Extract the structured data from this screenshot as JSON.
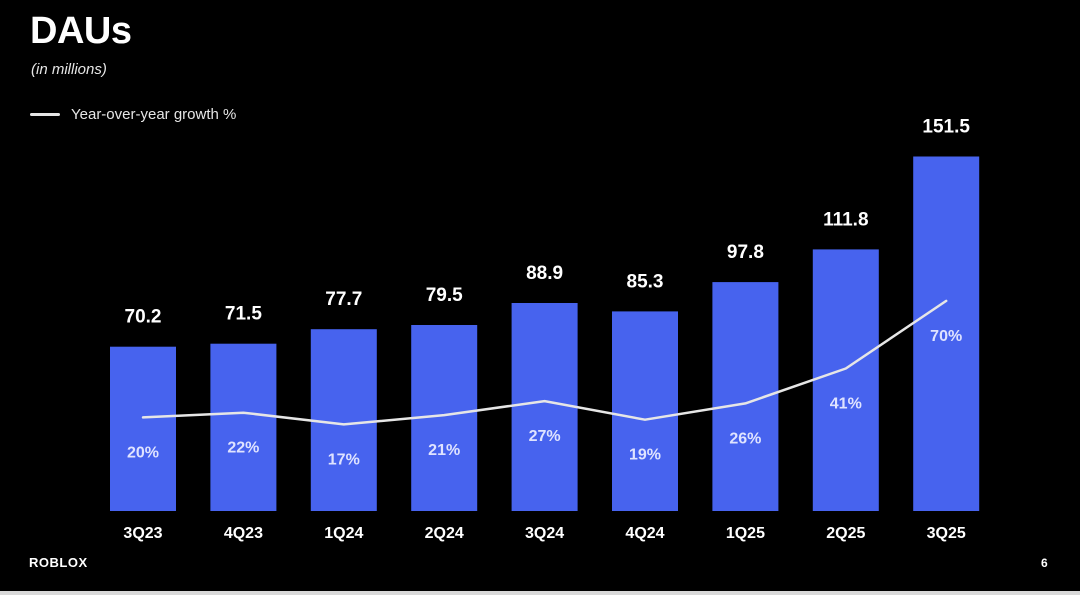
{
  "slide": {
    "title": "DAUs",
    "subtitle": "(in millions)",
    "logo": "ROBLOX",
    "page_number": "6"
  },
  "colors": {
    "background": "#000000",
    "bar": "#4763EE",
    "line": "#e6e6e6",
    "text": "#ffffff"
  },
  "chart_data": {
    "type": "bar",
    "title": "DAUs",
    "subtitle": "(in millions)",
    "categories": [
      "3Q23",
      "4Q23",
      "1Q24",
      "2Q24",
      "3Q24",
      "4Q24",
      "1Q25",
      "2Q25",
      "3Q25"
    ],
    "series": [
      {
        "type": "bar",
        "values": [
          70.2,
          71.5,
          77.7,
          79.5,
          88.9,
          85.3,
          97.8,
          111.8,
          151.5
        ],
        "labels": [
          "70.2",
          "71.5",
          "77.7",
          "79.5",
          "88.9",
          "85.3",
          "97.8",
          "111.8",
          "151.5"
        ]
      },
      {
        "name": "Year-over-year growth %",
        "type": "line",
        "values": [
          20,
          22,
          17,
          21,
          27,
          19,
          26,
          41,
          70
        ],
        "labels": [
          "20%",
          "22%",
          "17%",
          "21%",
          "27%",
          "19%",
          "26%",
          "41%",
          "70%"
        ]
      }
    ],
    "legend": {
      "position": "top-left",
      "entries": [
        "Year-over-year growth %"
      ]
    },
    "grid": false
  }
}
